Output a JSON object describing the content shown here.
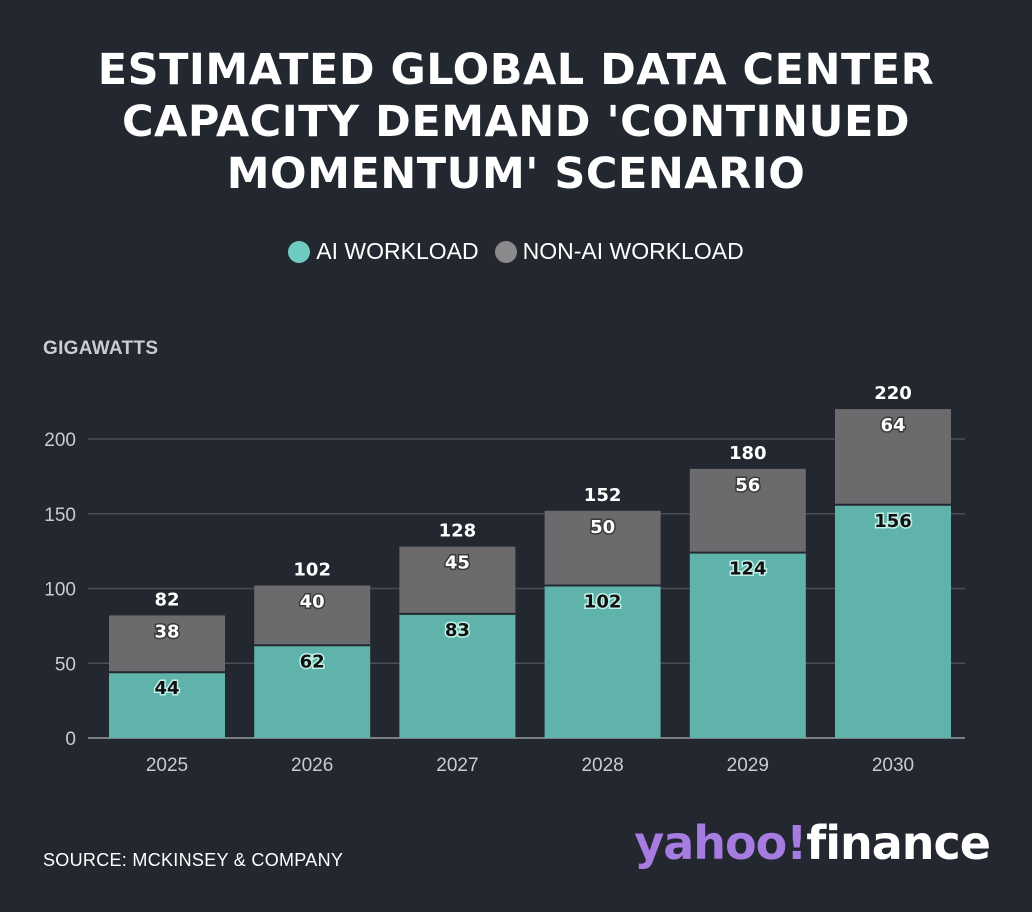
{
  "title": "ESTIMATED GLOBAL DATA CENTER CAPACITY DEMAND 'CONTINUED MOMENTUM' SCENARIO",
  "legend": {
    "ai_label": "AI WORKLOAD",
    "nonai_label": "NON-AI WORKLOAD"
  },
  "ylabel": "GIGAWATTS",
  "source": "SOURCE: MCKINSEY & COMPANY",
  "brand": {
    "yahoo": "yahoo!",
    "finance": "finance"
  },
  "colors": {
    "background": "#23272f",
    "ai": "#5fb3aa",
    "ai_legend": "#6fcbc0",
    "nonai": "#6b6b6d",
    "nonai_legend": "#8a8a8c",
    "grid": "#4a4e55",
    "tick_text": "#c9ccd1",
    "brand_purple": "#a77ce0"
  },
  "chart_data": {
    "type": "bar",
    "stacked": true,
    "categories": [
      "2025",
      "2026",
      "2027",
      "2028",
      "2029",
      "2030"
    ],
    "series": [
      {
        "name": "AI WORKLOAD",
        "values": [
          44,
          62,
          83,
          102,
          124,
          156
        ]
      },
      {
        "name": "NON-AI WORKLOAD",
        "values": [
          38,
          40,
          45,
          50,
          56,
          64
        ]
      }
    ],
    "totals": [
      82,
      102,
      128,
      152,
      180,
      220
    ],
    "ylabel": "GIGAWATTS",
    "ylim": [
      0,
      220
    ],
    "yticks": [
      0,
      50,
      100,
      150,
      200
    ],
    "grid": true,
    "legend_position": "top"
  }
}
